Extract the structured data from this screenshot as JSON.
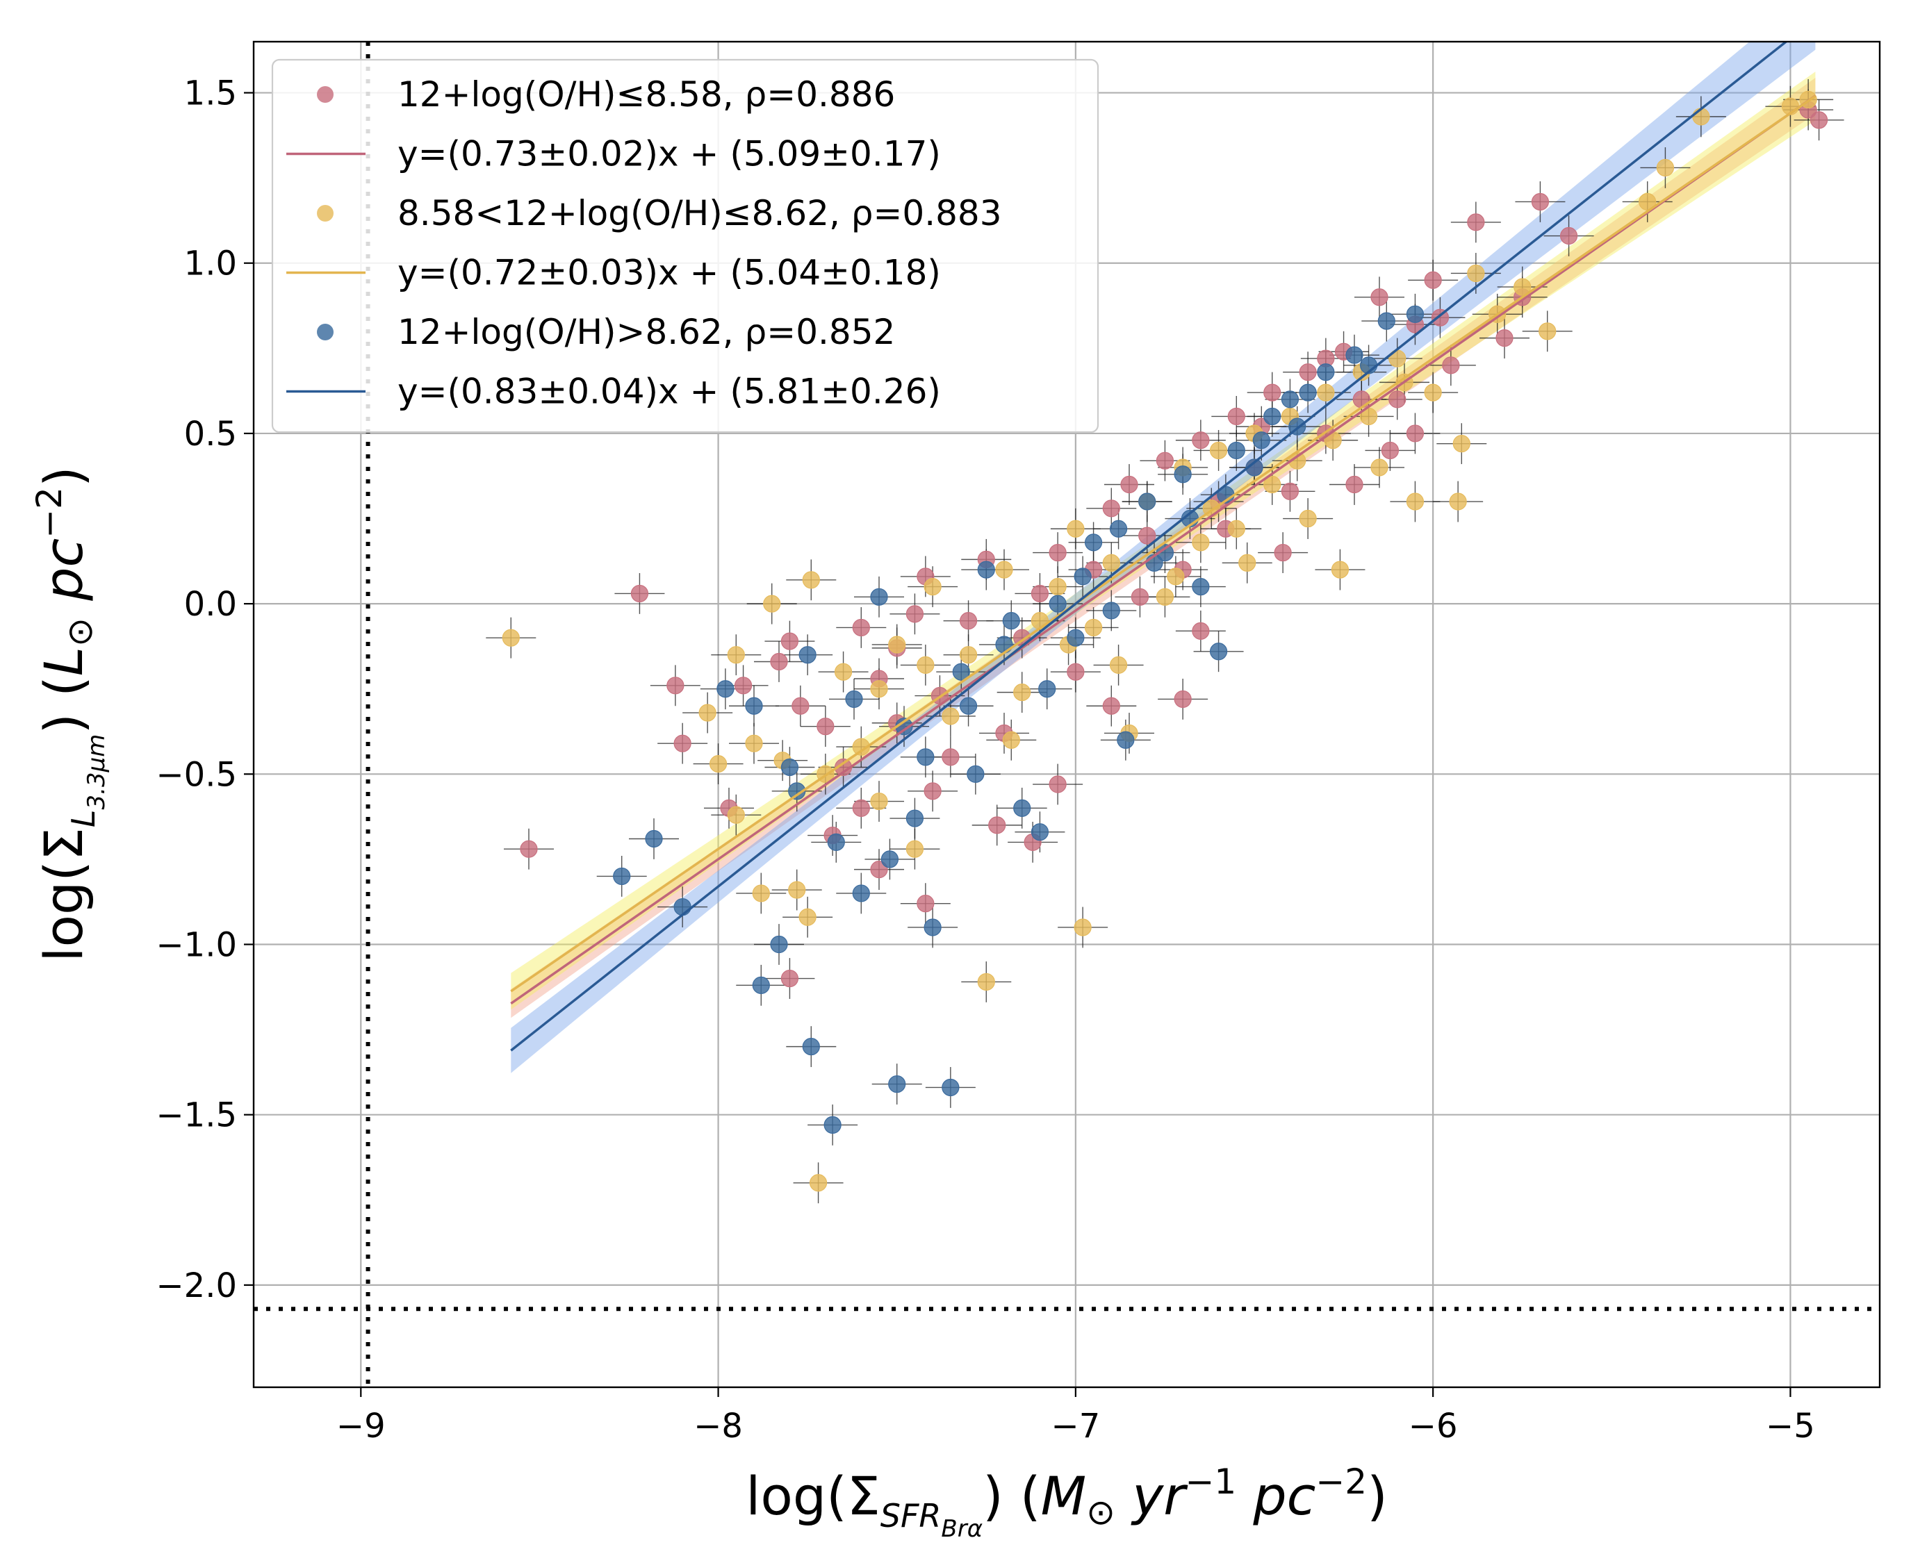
{
  "chart_data": {
    "type": "scatter",
    "xlabel": "log(Σ_SFR_Brα) (M_⊙ yr^-1 pc^-2)",
    "ylabel": "log(Σ_L_3.3μm) (L_⊙ pc^-2)",
    "xlim": [
      -9.3,
      -4.75
    ],
    "ylim": [
      -2.3,
      1.65
    ],
    "xticks": [
      -9,
      -8,
      -7,
      -6,
      -5
    ],
    "yticks": [
      -2.0,
      -1.5,
      -1.0,
      -0.5,
      0.0,
      0.5,
      1.0,
      1.5
    ],
    "xtick_labels": [
      "−9",
      "−8",
      "−7",
      "−6",
      "−5"
    ],
    "ytick_labels": [
      "−2.0",
      "−1.5",
      "−1.0",
      "−0.5",
      "0.0",
      "0.5",
      "1.0",
      "1.5"
    ],
    "grid": true,
    "legend_position": "top-left",
    "detection_limits": {
      "x": -8.98,
      "y": -2.07
    },
    "series": [
      {
        "name": "12+log(O/H)≤8.58, ρ=0.886",
        "fit_label": "y=(0.73±0.02)x + (5.09±0.17)",
        "color": "#c8707f",
        "line_color": "#c0657a",
        "band_color": "#f2a48f",
        "slope": 0.73,
        "intercept": 5.09,
        "slope_err": 0.02,
        "intercept_err": 0.17,
        "fit_range": [
          -8.58,
          -4.93
        ],
        "points": [
          [
            -8.22,
            0.03
          ],
          [
            -8.53,
            -0.72
          ],
          [
            -8.12,
            -0.24
          ],
          [
            -8.1,
            -0.41
          ],
          [
            -7.93,
            -0.24
          ],
          [
            -7.97,
            -0.6
          ],
          [
            -7.8,
            -0.11
          ],
          [
            -7.83,
            -0.17
          ],
          [
            -7.77,
            -0.3
          ],
          [
            -7.7,
            -0.36
          ],
          [
            -7.65,
            -0.48
          ],
          [
            -7.6,
            -0.07
          ],
          [
            -7.55,
            -0.22
          ],
          [
            -7.5,
            -0.13
          ],
          [
            -7.45,
            -0.03
          ],
          [
            -7.42,
            0.08
          ],
          [
            -7.38,
            -0.27
          ],
          [
            -7.3,
            -0.05
          ],
          [
            -7.25,
            0.13
          ],
          [
            -7.2,
            -0.38
          ],
          [
            -7.15,
            -0.1
          ],
          [
            -7.1,
            0.03
          ],
          [
            -7.05,
            0.15
          ],
          [
            -7.0,
            -0.2
          ],
          [
            -6.95,
            0.1
          ],
          [
            -6.9,
            0.28
          ],
          [
            -6.85,
            0.35
          ],
          [
            -6.8,
            0.2
          ],
          [
            -6.75,
            0.42
          ],
          [
            -6.7,
            0.1
          ],
          [
            -6.65,
            0.48
          ],
          [
            -6.6,
            0.3
          ],
          [
            -6.55,
            0.55
          ],
          [
            -6.5,
            0.4
          ],
          [
            -6.45,
            0.62
          ],
          [
            -6.4,
            0.33
          ],
          [
            -6.35,
            0.68
          ],
          [
            -6.3,
            0.5
          ],
          [
            -6.25,
            0.74
          ],
          [
            -6.2,
            0.6
          ],
          [
            -6.15,
            0.9
          ],
          [
            -6.12,
            0.45
          ],
          [
            -6.05,
            0.82
          ],
          [
            -6.0,
            0.95
          ],
          [
            -5.95,
            0.7
          ],
          [
            -5.88,
            1.12
          ],
          [
            -5.7,
            1.18
          ],
          [
            -5.62,
            1.08
          ],
          [
            -5.8,
            0.78
          ],
          [
            -5.75,
            0.9
          ],
          [
            -4.95,
            1.45
          ],
          [
            -4.92,
            1.42
          ],
          [
            -7.55,
            -0.78
          ],
          [
            -7.42,
            -0.88
          ],
          [
            -7.8,
            -1.1
          ],
          [
            -7.6,
            -0.6
          ],
          [
            -7.4,
            -0.55
          ],
          [
            -7.22,
            -0.65
          ],
          [
            -7.05,
            -0.53
          ],
          [
            -6.7,
            -0.28
          ],
          [
            -6.65,
            -0.08
          ],
          [
            -6.9,
            -0.3
          ],
          [
            -7.12,
            -0.7
          ],
          [
            -7.35,
            -0.45
          ],
          [
            -7.68,
            -0.68
          ],
          [
            -7.5,
            -0.35
          ],
          [
            -6.82,
            0.02
          ],
          [
            -6.58,
            0.22
          ],
          [
            -6.42,
            0.15
          ],
          [
            -6.22,
            0.35
          ],
          [
            -6.1,
            0.6
          ],
          [
            -6.3,
            0.72
          ],
          [
            -6.48,
            0.52
          ],
          [
            -6.05,
            0.5
          ],
          [
            -5.98,
            0.84
          ]
        ]
      },
      {
        "name": "8.58<12+log(O/H)≤8.62, ρ=0.883",
        "fit_label": "y=(0.72±0.03)x + (5.04±0.18)",
        "color": "#e6bb5c",
        "line_color": "#e3b54f",
        "band_color": "#f5ee5f",
        "slope": 0.72,
        "intercept": 5.04,
        "slope_err": 0.03,
        "intercept_err": 0.18,
        "fit_range": [
          -8.58,
          -4.93
        ],
        "points": [
          [
            -8.58,
            -0.1
          ],
          [
            -8.03,
            -0.32
          ],
          [
            -8.0,
            -0.47
          ],
          [
            -7.95,
            -0.62
          ],
          [
            -7.9,
            -0.41
          ],
          [
            -7.88,
            -0.85
          ],
          [
            -7.82,
            -0.46
          ],
          [
            -7.78,
            -0.84
          ],
          [
            -7.75,
            -0.92
          ],
          [
            -7.74,
            0.07
          ],
          [
            -7.72,
            -1.7
          ],
          [
            -7.65,
            -0.2
          ],
          [
            -7.6,
            -0.42
          ],
          [
            -7.55,
            -0.58
          ],
          [
            -7.5,
            -0.12
          ],
          [
            -7.45,
            -0.72
          ],
          [
            -7.4,
            0.05
          ],
          [
            -7.35,
            -0.33
          ],
          [
            -7.3,
            -0.15
          ],
          [
            -7.25,
            -1.11
          ],
          [
            -7.2,
            0.1
          ],
          [
            -7.15,
            -0.26
          ],
          [
            -7.1,
            -0.05
          ],
          [
            -7.05,
            0.05
          ],
          [
            -7.0,
            0.22
          ],
          [
            -6.98,
            -0.95
          ],
          [
            -6.95,
            -0.07
          ],
          [
            -6.9,
            0.12
          ],
          [
            -6.85,
            -0.38
          ],
          [
            -6.8,
            0.3
          ],
          [
            -6.75,
            0.02
          ],
          [
            -6.7,
            0.4
          ],
          [
            -6.65,
            0.18
          ],
          [
            -6.6,
            0.45
          ],
          [
            -6.55,
            0.22
          ],
          [
            -6.5,
            0.5
          ],
          [
            -6.45,
            0.35
          ],
          [
            -6.4,
            0.55
          ],
          [
            -6.35,
            0.25
          ],
          [
            -6.3,
            0.62
          ],
          [
            -6.26,
            0.1
          ],
          [
            -6.2,
            0.68
          ],
          [
            -6.15,
            0.4
          ],
          [
            -6.1,
            0.72
          ],
          [
            -6.05,
            0.3
          ],
          [
            -6.0,
            0.62
          ],
          [
            -5.92,
            0.47
          ],
          [
            -5.93,
            0.3
          ],
          [
            -5.88,
            0.97
          ],
          [
            -5.75,
            0.93
          ],
          [
            -5.68,
            0.8
          ],
          [
            -5.4,
            1.18
          ],
          [
            -5.35,
            1.28
          ],
          [
            -5.25,
            1.43
          ],
          [
            -5.0,
            1.46
          ],
          [
            -4.95,
            1.48
          ],
          [
            -7.95,
            -0.15
          ],
          [
            -7.85,
            0.0
          ],
          [
            -7.7,
            -0.5
          ],
          [
            -7.55,
            -0.25
          ],
          [
            -7.42,
            -0.18
          ],
          [
            -7.18,
            -0.4
          ],
          [
            -7.02,
            -0.12
          ],
          [
            -6.88,
            -0.18
          ],
          [
            -6.72,
            0.08
          ],
          [
            -6.62,
            0.28
          ],
          [
            -6.52,
            0.12
          ],
          [
            -6.38,
            0.42
          ],
          [
            -6.28,
            0.48
          ],
          [
            -6.18,
            0.55
          ],
          [
            -6.08,
            0.65
          ],
          [
            -5.82,
            0.85
          ]
        ]
      },
      {
        "name": "12+log(O/H)>8.62, ρ=0.852",
        "fit_label": "y=(0.83±0.04)x + (5.81±0.26)",
        "color": "#3b6b9e",
        "line_color": "#2a5a94",
        "band_color": "#7da7ec",
        "slope": 0.83,
        "intercept": 5.81,
        "slope_err": 0.04,
        "intercept_err": 0.26,
        "fit_range": [
          -8.58,
          -4.93
        ],
        "points": [
          [
            -8.27,
            -0.8
          ],
          [
            -8.18,
            -0.69
          ],
          [
            -8.1,
            -0.89
          ],
          [
            -7.98,
            -0.25
          ],
          [
            -7.88,
            -1.12
          ],
          [
            -7.83,
            -1.0
          ],
          [
            -7.8,
            -0.48
          ],
          [
            -7.75,
            -0.15
          ],
          [
            -7.74,
            -1.3
          ],
          [
            -7.68,
            -1.53
          ],
          [
            -7.67,
            -0.7
          ],
          [
            -7.6,
            -0.85
          ],
          [
            -7.55,
            0.02
          ],
          [
            -7.5,
            -1.41
          ],
          [
            -7.48,
            -0.36
          ],
          [
            -7.45,
            -0.63
          ],
          [
            -7.4,
            -0.95
          ],
          [
            -7.35,
            -1.42
          ],
          [
            -7.32,
            -0.2
          ],
          [
            -7.28,
            -0.5
          ],
          [
            -7.25,
            0.1
          ],
          [
            -7.2,
            -0.12
          ],
          [
            -7.15,
            -0.6
          ],
          [
            -7.1,
            -0.67
          ],
          [
            -7.05,
            0.0
          ],
          [
            -7.0,
            -0.1
          ],
          [
            -6.95,
            0.18
          ],
          [
            -6.9,
            -0.02
          ],
          [
            -6.86,
            -0.4
          ],
          [
            -6.8,
            0.3
          ],
          [
            -6.75,
            0.15
          ],
          [
            -6.7,
            0.38
          ],
          [
            -6.65,
            0.05
          ],
          [
            -6.6,
            -0.14
          ],
          [
            -6.55,
            0.45
          ],
          [
            -6.5,
            0.4
          ],
          [
            -6.45,
            0.55
          ],
          [
            -6.4,
            0.6
          ],
          [
            -6.35,
            0.62
          ],
          [
            -6.3,
            0.68
          ],
          [
            -6.22,
            0.73
          ],
          [
            -6.18,
            0.7
          ],
          [
            -6.13,
            0.83
          ],
          [
            -6.05,
            0.85
          ],
          [
            -7.9,
            -0.3
          ],
          [
            -7.78,
            -0.55
          ],
          [
            -7.62,
            -0.28
          ],
          [
            -7.52,
            -0.75
          ],
          [
            -7.42,
            -0.45
          ],
          [
            -7.3,
            -0.3
          ],
          [
            -7.18,
            -0.05
          ],
          [
            -7.08,
            -0.25
          ],
          [
            -6.98,
            0.08
          ],
          [
            -6.88,
            0.22
          ],
          [
            -6.78,
            0.12
          ],
          [
            -6.68,
            0.25
          ],
          [
            -6.58,
            0.32
          ],
          [
            -6.48,
            0.48
          ],
          [
            -6.38,
            0.52
          ]
        ]
      }
    ]
  }
}
